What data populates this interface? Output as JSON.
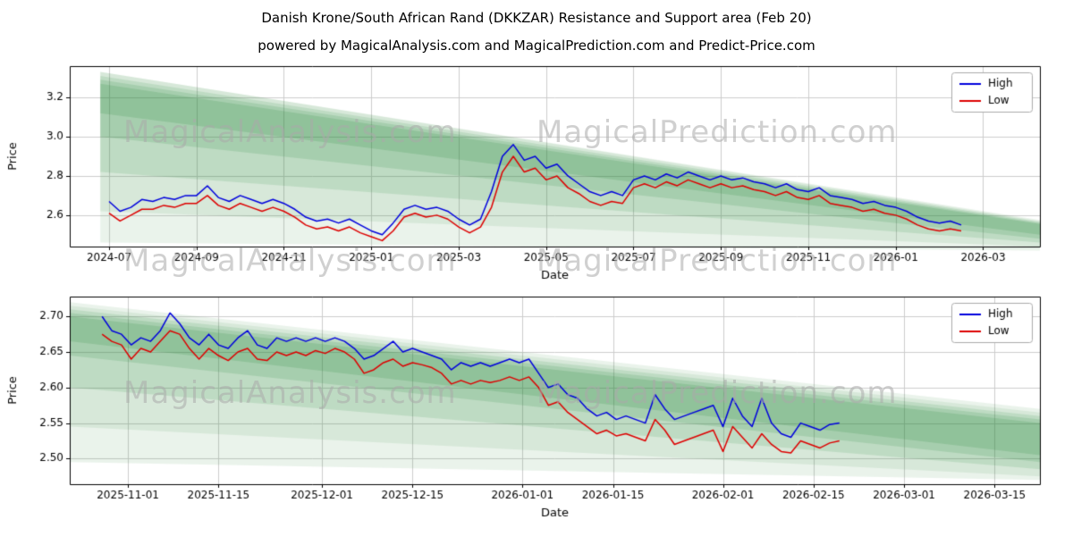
{
  "header": {
    "title": "Danish Krone/South African Rand (DKKZAR) Resistance and Support area (Feb 20)",
    "subtitle": "powered by MagicalAnalysis.com and MagicalPrediction.com and Predict-Price.com"
  },
  "watermarks": {
    "analysis": "MagicalAnalysis.com",
    "prediction": "MagicalPrediction.com"
  },
  "colors": {
    "high_line": "#0000dd",
    "low_line": "#dd0000",
    "band_green": "#2e8b3d",
    "grid": "#cccccc"
  },
  "chart_data": [
    {
      "type": "line",
      "title": "",
      "xlabel": "Date",
      "ylabel": "Price",
      "xlim": [
        -0.9,
        21.3
      ],
      "ylim": [
        2.44,
        3.36
      ],
      "grid": true,
      "legend_position": "upper right",
      "band_color": "#2e8b3d",
      "xticks": [
        0,
        2,
        4,
        6,
        8,
        10,
        12,
        14,
        16,
        18,
        20
      ],
      "xtick_labels": [
        "2024-07",
        "2024-09",
        "2024-11",
        "2025-01",
        "2025-03",
        "2025-05",
        "2025-07",
        "2025-09",
        "2025-11",
        "2026-01",
        "2026-03"
      ],
      "yticks": [
        2.6,
        2.8,
        3.0,
        3.2
      ],
      "ytick_labels": [
        "2.6",
        "2.8",
        "3.0",
        "3.2"
      ],
      "bands": [
        {
          "x": [
            -0.2,
            21.3
          ],
          "upper": [
            3.33,
            2.575
          ],
          "lower": [
            2.46,
            2.42
          ],
          "alpha": 0.1
        },
        {
          "x": [
            -0.2,
            21.3
          ],
          "upper": [
            3.33,
            2.57
          ],
          "lower": [
            2.62,
            2.44
          ],
          "alpha": 0.1
        },
        {
          "x": [
            -0.2,
            21.3
          ],
          "upper": [
            3.31,
            2.565
          ],
          "lower": [
            2.82,
            2.46
          ],
          "alpha": 0.14
        },
        {
          "x": [
            -0.2,
            21.3
          ],
          "upper": [
            3.29,
            2.56
          ],
          "lower": [
            3.0,
            2.48
          ],
          "alpha": 0.16
        },
        {
          "x": [
            -0.2,
            21.3
          ],
          "upper": [
            3.27,
            2.555
          ],
          "lower": [
            3.12,
            2.5
          ],
          "alpha": 0.18
        }
      ],
      "series": [
        {
          "name": "High",
          "color": "#0000dd",
          "x_start": 0,
          "x_step": 0.25,
          "values": [
            2.67,
            2.62,
            2.64,
            2.68,
            2.67,
            2.69,
            2.68,
            2.7,
            2.7,
            2.75,
            2.69,
            2.67,
            2.7,
            2.68,
            2.66,
            2.68,
            2.66,
            2.63,
            2.59,
            2.57,
            2.58,
            2.56,
            2.58,
            2.55,
            2.52,
            2.5,
            2.56,
            2.63,
            2.65,
            2.63,
            2.64,
            2.62,
            2.58,
            2.55,
            2.58,
            2.72,
            2.9,
            2.96,
            2.88,
            2.9,
            2.84,
            2.86,
            2.8,
            2.76,
            2.72,
            2.7,
            2.72,
            2.7,
            2.78,
            2.8,
            2.78,
            2.81,
            2.79,
            2.82,
            2.8,
            2.78,
            2.8,
            2.78,
            2.79,
            2.77,
            2.76,
            2.74,
            2.76,
            2.73,
            2.72,
            2.74,
            2.7,
            2.69,
            2.68,
            2.66,
            2.67,
            2.65,
            2.64,
            2.62,
            2.59,
            2.57,
            2.56,
            2.57,
            2.55
          ]
        },
        {
          "name": "Low",
          "color": "#dd0000",
          "x_start": 0,
          "x_step": 0.25,
          "values": [
            2.61,
            2.57,
            2.6,
            2.63,
            2.63,
            2.65,
            2.64,
            2.66,
            2.66,
            2.7,
            2.65,
            2.63,
            2.66,
            2.64,
            2.62,
            2.64,
            2.62,
            2.59,
            2.55,
            2.53,
            2.54,
            2.52,
            2.54,
            2.51,
            2.49,
            2.47,
            2.52,
            2.59,
            2.61,
            2.59,
            2.6,
            2.58,
            2.54,
            2.51,
            2.54,
            2.64,
            2.82,
            2.9,
            2.82,
            2.84,
            2.78,
            2.8,
            2.74,
            2.71,
            2.67,
            2.65,
            2.67,
            2.66,
            2.74,
            2.76,
            2.74,
            2.77,
            2.75,
            2.78,
            2.76,
            2.74,
            2.76,
            2.74,
            2.75,
            2.73,
            2.72,
            2.7,
            2.72,
            2.69,
            2.68,
            2.7,
            2.66,
            2.65,
            2.64,
            2.62,
            2.63,
            2.61,
            2.6,
            2.58,
            2.55,
            2.53,
            2.52,
            2.53,
            2.52
          ]
        }
      ]
    },
    {
      "type": "line",
      "title": "",
      "xlabel": "Date",
      "ylabel": "Price",
      "xlim": [
        -2,
        148
      ],
      "ylim": [
        2.464,
        2.728
      ],
      "grid": true,
      "legend_position": "upper right",
      "band_color": "#2e8b3d",
      "xticks": [
        7,
        21,
        37,
        51,
        68,
        82,
        99,
        113,
        127,
        141
      ],
      "xtick_labels": [
        "2025-11-01",
        "2025-11-15",
        "2025-12-01",
        "2025-12-15",
        "2026-01-01",
        "2026-01-15",
        "2026-02-01",
        "2026-02-15",
        "2026-03-01",
        "2026-03-15"
      ],
      "yticks": [
        2.5,
        2.55,
        2.6,
        2.65,
        2.7
      ],
      "ytick_labels": [
        "2.50",
        "2.55",
        "2.60",
        "2.65",
        "2.70"
      ],
      "bands": [
        {
          "x": [
            -2,
            148
          ],
          "upper": [
            2.72,
            2.57
          ],
          "lower": [
            2.495,
            2.47
          ],
          "alpha": 0.1
        },
        {
          "x": [
            -2,
            148
          ],
          "upper": [
            2.715,
            2.565
          ],
          "lower": [
            2.545,
            2.475
          ],
          "alpha": 0.1
        },
        {
          "x": [
            -2,
            148
          ],
          "upper": [
            2.71,
            2.56
          ],
          "lower": [
            2.6,
            2.485
          ],
          "alpha": 0.14
        },
        {
          "x": [
            -2,
            148
          ],
          "upper": [
            2.705,
            2.555
          ],
          "lower": [
            2.645,
            2.495
          ],
          "alpha": 0.16
        },
        {
          "x": [
            -2,
            148
          ],
          "upper": [
            2.7,
            2.55
          ],
          "lower": [
            2.665,
            2.505
          ],
          "alpha": 0.18
        }
      ],
      "series": [
        {
          "name": "High",
          "color": "#0000dd",
          "x_start": 3,
          "x_step": 1.5,
          "values": [
            2.7,
            2.68,
            2.675,
            2.66,
            2.67,
            2.665,
            2.68,
            2.705,
            2.69,
            2.67,
            2.66,
            2.675,
            2.66,
            2.655,
            2.67,
            2.68,
            2.66,
            2.655,
            2.67,
            2.665,
            2.67,
            2.665,
            2.67,
            2.665,
            2.67,
            2.665,
            2.655,
            2.64,
            2.645,
            2.655,
            2.665,
            2.65,
            2.655,
            2.65,
            2.645,
            2.64,
            2.625,
            2.635,
            2.63,
            2.635,
            2.63,
            2.635,
            2.64,
            2.635,
            2.64,
            2.62,
            2.6,
            2.605,
            2.59,
            2.585,
            2.57,
            2.56,
            2.565,
            2.555,
            2.56,
            2.555,
            2.55,
            2.59,
            2.57,
            2.555,
            2.56,
            2.565,
            2.57,
            2.575,
            2.545,
            2.585,
            2.56,
            2.545,
            2.585,
            2.55,
            2.535,
            2.53,
            2.55,
            2.545,
            2.54,
            2.548,
            2.55
          ]
        },
        {
          "name": "Low",
          "color": "#dd0000",
          "x_start": 3,
          "x_step": 1.5,
          "values": [
            2.675,
            2.665,
            2.66,
            2.64,
            2.655,
            2.65,
            2.665,
            2.68,
            2.675,
            2.655,
            2.64,
            2.655,
            2.645,
            2.638,
            2.65,
            2.655,
            2.64,
            2.638,
            2.65,
            2.645,
            2.65,
            2.645,
            2.652,
            2.648,
            2.655,
            2.65,
            2.64,
            2.62,
            2.625,
            2.635,
            2.64,
            2.63,
            2.635,
            2.632,
            2.628,
            2.62,
            2.605,
            2.61,
            2.605,
            2.61,
            2.607,
            2.61,
            2.615,
            2.61,
            2.615,
            2.6,
            2.575,
            2.58,
            2.565,
            2.555,
            2.545,
            2.535,
            2.54,
            2.532,
            2.535,
            2.53,
            2.525,
            2.555,
            2.54,
            2.52,
            2.525,
            2.53,
            2.535,
            2.54,
            2.51,
            2.545,
            2.53,
            2.515,
            2.535,
            2.52,
            2.51,
            2.508,
            2.525,
            2.52,
            2.515,
            2.522,
            2.525
          ]
        }
      ]
    }
  ]
}
